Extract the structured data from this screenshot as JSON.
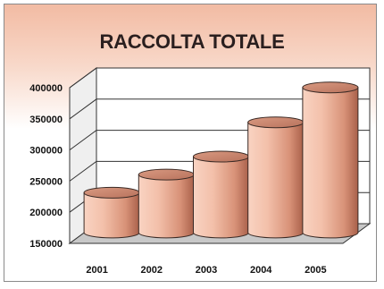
{
  "chart_data": {
    "type": "bar",
    "style": "3d-cylinder",
    "title": "RACCOLTA TOTALE",
    "categories": [
      "2001",
      "2002",
      "2003",
      "2004",
      "2005"
    ],
    "values": [
      214000,
      243000,
      272000,
      327000,
      383000
    ],
    "ylim": [
      150000,
      400000
    ],
    "yticks": [
      "150000",
      "200000",
      "250000",
      "300000",
      "350000",
      "400000"
    ],
    "xlabel": "",
    "ylabel": "",
    "grid": true,
    "legend": "none",
    "colors": {
      "bar_light": "#f8c9b4",
      "bar_mid": "#e8a58a",
      "bar_dark": "#a9604a",
      "bar_top": "#cf8a70",
      "floor": "#c8c8c8",
      "wall": "#ffffff",
      "background_top": "#f2bba3"
    }
  }
}
